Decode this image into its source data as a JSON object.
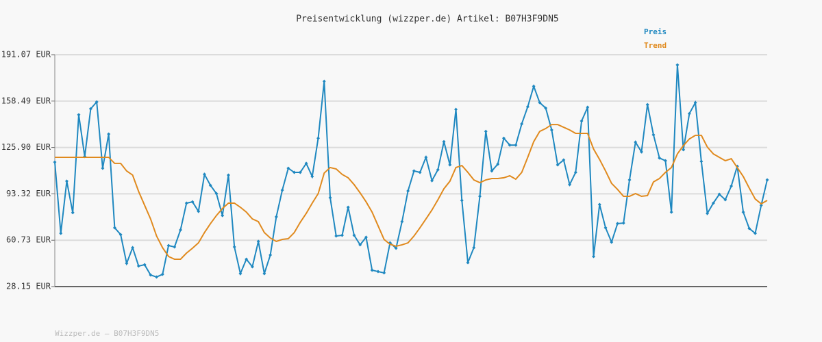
{
  "chart_data": {
    "type": "line",
    "title": "Preisentwicklung (wizzper.de) Artikel: B07H3F9DN5",
    "footer": "Wizzper.de – B07H3F9DN5",
    "legend": "top-right",
    "grid": true,
    "ylim": [
      28.15,
      191.07
    ],
    "yticks": [
      {
        "value": 28.15,
        "label": "28.15 EUR"
      },
      {
        "value": 60.73,
        "label": "60.73 EUR"
      },
      {
        "value": 93.32,
        "label": "93.32 EUR"
      },
      {
        "value": 125.9,
        "label": "125.90 EUR"
      },
      {
        "value": 158.49,
        "label": "158.49 EUR"
      },
      {
        "value": 191.07,
        "label": "191.07 EUR"
      }
    ],
    "series": [
      {
        "name": "Preis",
        "color": "#1f88c0",
        "markers": true,
        "values": [
          115.6,
          65.6,
          102.2,
          80.1,
          148.9,
          119.5,
          153.1,
          157.9,
          111.3,
          135.3,
          69.5,
          64.7,
          44.5,
          55.5,
          42.6,
          43.5,
          36.3,
          34.9,
          36.8,
          57.0,
          56.0,
          68.0,
          86.8,
          87.7,
          81.0,
          107.0,
          99.3,
          93.5,
          78.1,
          106.5,
          56.0,
          37.3,
          47.4,
          42.1,
          59.9,
          37.3,
          50.3,
          77.2,
          95.9,
          111.3,
          108.4,
          108.4,
          114.7,
          105.5,
          132.4,
          172.3,
          90.6,
          63.7,
          64.2,
          83.9,
          64.2,
          57.5,
          62.8,
          39.7,
          38.7,
          37.8,
          58.9,
          55.1,
          73.8,
          95.4,
          109.4,
          108.4,
          119.0,
          102.6,
          110.3,
          130.0,
          113.7,
          152.6,
          88.7,
          45.0,
          55.5,
          91.6,
          137.2,
          109.4,
          114.2,
          132.4,
          127.6,
          127.6,
          142.5,
          154.5,
          168.9,
          157.4,
          153.6,
          138.2,
          113.7,
          117.1,
          99.8,
          108.4,
          144.5,
          154.1,
          49.3,
          85.8,
          69.5,
          59.4,
          72.4,
          72.8,
          103.1,
          129.6,
          122.8,
          156.0,
          134.8,
          118.5,
          116.6,
          80.5,
          183.9,
          124.3,
          149.7,
          157.4,
          116.1,
          79.6,
          86.8,
          93.0,
          89.2,
          98.8,
          112.7,
          80.5,
          69.0,
          65.6,
          85.3,
          103.1
        ]
      },
      {
        "name": "Trend",
        "color": "#e08a1e",
        "markers": false,
        "values": [
          119.0,
          119.0,
          119.0,
          119.0,
          119.0,
          119.0,
          119.0,
          119.0,
          119.0,
          119.0,
          114.7,
          114.7,
          109.4,
          106.5,
          95.0,
          85.3,
          75.7,
          63.7,
          55.5,
          49.3,
          47.4,
          47.4,
          51.7,
          55.1,
          58.9,
          66.1,
          72.4,
          78.1,
          83.0,
          86.8,
          86.8,
          83.9,
          80.5,
          75.7,
          73.8,
          66.1,
          62.3,
          59.9,
          61.3,
          61.8,
          66.1,
          73.3,
          79.6,
          86.8,
          93.5,
          107.9,
          111.8,
          110.8,
          107.0,
          104.6,
          99.8,
          94.0,
          87.7,
          80.5,
          70.9,
          61.3,
          57.9,
          56.5,
          57.5,
          58.9,
          63.7,
          69.5,
          75.7,
          82.0,
          89.2,
          96.9,
          102.2,
          111.8,
          113.2,
          108.4,
          103.1,
          101.2,
          103.1,
          104.1,
          104.1,
          104.6,
          106.0,
          103.6,
          108.4,
          119.0,
          130.0,
          137.2,
          139.2,
          142.0,
          142.0,
          140.1,
          138.2,
          135.8,
          135.8,
          135.8,
          124.8,
          117.5,
          109.4,
          100.7,
          96.4,
          91.6,
          91.6,
          93.5,
          91.6,
          92.1,
          101.7,
          104.1,
          108.4,
          111.8,
          121.4,
          127.2,
          131.9,
          134.4,
          134.4,
          126.2,
          121.4,
          119.0,
          116.6,
          118.0,
          111.8,
          105.5,
          97.4,
          89.7,
          86.3,
          88.7
        ]
      }
    ]
  }
}
